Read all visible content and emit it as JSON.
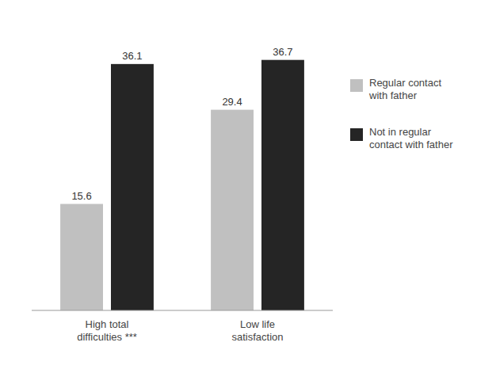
{
  "chart_data": {
    "type": "bar",
    "categories": [
      "High total\ndifficulties ***",
      "Low life\nsatisfaction"
    ],
    "series": [
      {
        "name": "Regular contact\nwith father",
        "color": "#c0c0c0",
        "values": [
          15.6,
          29.4
        ]
      },
      {
        "name": "Not in regular\ncontact with father",
        "color": "#252525",
        "values": [
          36.1,
          36.7
        ]
      }
    ],
    "ylim": [
      0,
      42
    ],
    "data_labels": true,
    "tick_labels": "x",
    "grid": false,
    "legend": "right"
  }
}
